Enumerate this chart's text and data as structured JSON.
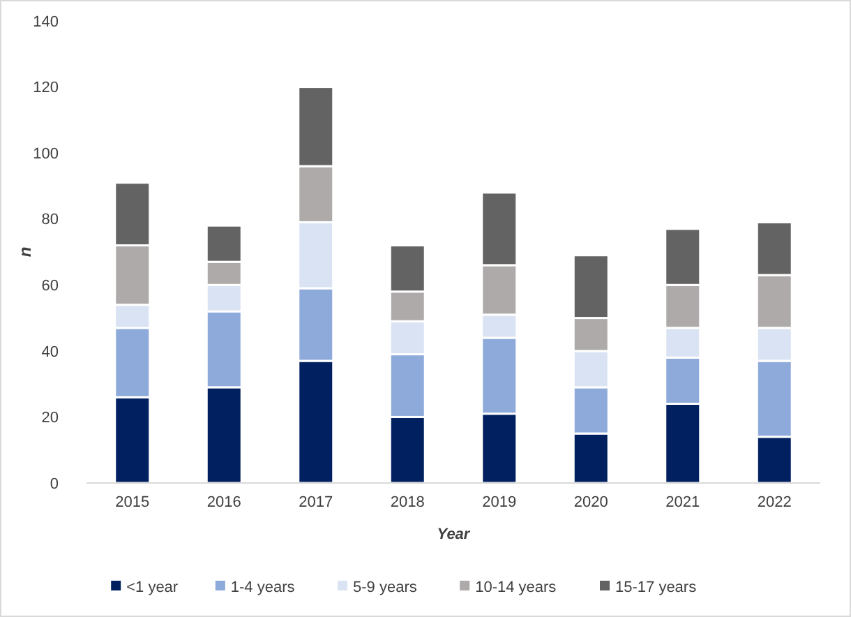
{
  "chart_data": {
    "type": "bar",
    "stacked": true,
    "xlabel": "Year",
    "ylabel": "n",
    "categories": [
      "2015",
      "2016",
      "2017",
      "2018",
      "2019",
      "2020",
      "2021",
      "2022"
    ],
    "series": [
      {
        "name": "<1 year",
        "color": "#002060",
        "values": [
          26,
          29,
          37,
          20,
          21,
          15,
          24,
          14
        ]
      },
      {
        "name": "1-4 years",
        "color": "#8eaadb",
        "values": [
          21,
          23,
          22,
          19,
          23,
          14,
          14,
          23
        ]
      },
      {
        "name": "5-9 years",
        "color": "#dae3f3",
        "values": [
          7,
          8,
          20,
          10,
          7,
          11,
          9,
          10
        ]
      },
      {
        "name": "10-14 years",
        "color": "#aeaaaa",
        "values": [
          18,
          7,
          17,
          9,
          15,
          10,
          13,
          16
        ]
      },
      {
        "name": "15-17 years",
        "color": "#636363",
        "values": [
          19,
          11,
          24,
          14,
          22,
          19,
          17,
          16
        ]
      }
    ],
    "ylim": [
      0,
      140
    ],
    "yticks": [
      0,
      20,
      40,
      60,
      80,
      100,
      120,
      140
    ],
    "grid": false,
    "legend": "bottom"
  }
}
